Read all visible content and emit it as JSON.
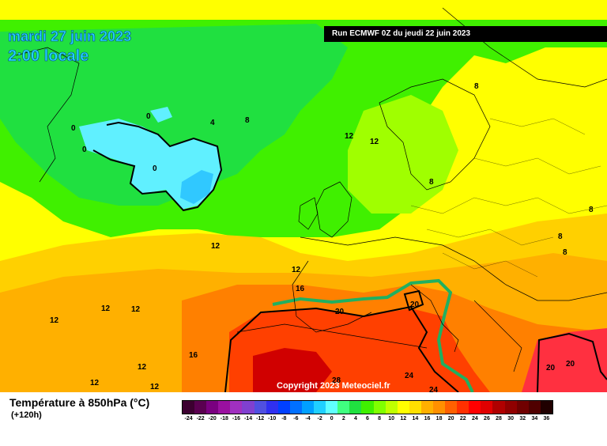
{
  "header": {
    "date": "mardi 27 juin 2023",
    "time": "2:00 locale",
    "run": "Run ECMWF 0Z du jeudi 22 juin 2023"
  },
  "copyright": "Copyright 2023 Meteociel.fr",
  "legend": {
    "title": "Température à 850hPa (°C)",
    "subtitle": "(+120h)",
    "values": [
      "-24",
      "-22",
      "-20",
      "-18",
      "-16",
      "-14",
      "-12",
      "-10",
      "-8",
      "-6",
      "-4",
      "-2",
      "0",
      "2",
      "4",
      "6",
      "8",
      "10",
      "12",
      "14",
      "16",
      "18",
      "20",
      "22",
      "24",
      "26",
      "28",
      "30",
      "32",
      "34",
      "36"
    ],
    "colors": [
      "#3c0030",
      "#5a0050",
      "#7a0080",
      "#9a10a0",
      "#a030c0",
      "#8040d0",
      "#5050e0",
      "#3030f0",
      "#0040ff",
      "#0070ff",
      "#00a0ff",
      "#20d0ff",
      "#60ffff",
      "#40ff80",
      "#20e040",
      "#40f000",
      "#80ff00",
      "#c0ff00",
      "#ffff00",
      "#ffe000",
      "#ffb000",
      "#ff9000",
      "#ff6000",
      "#ff3000",
      "#ff0000",
      "#e00000",
      "#b00000",
      "#900000",
      "#700000",
      "#500000",
      "#200000"
    ]
  },
  "contour_labels": [
    "0",
    "0",
    "0",
    "0",
    "0",
    "4",
    "8",
    "8",
    "8",
    "8",
    "8",
    "8",
    "12",
    "12",
    "12",
    "12",
    "12",
    "12",
    "12",
    "12",
    "12",
    "12",
    "16",
    "16",
    "20",
    "20",
    "20",
    "20",
    "24",
    "24",
    "28"
  ],
  "map_colors": {
    "cold_blue": "#60f0ff",
    "deep_blue": "#30c8ff",
    "green": "#20e040",
    "light_green": "#60f000",
    "yellow_green": "#c0ff00",
    "yellow": "#ffff00",
    "gold": "#ffd000",
    "orange": "#ffa000",
    "dark_orange": "#ff7000",
    "red": "#ff3000",
    "dark_red": "#d00000"
  }
}
